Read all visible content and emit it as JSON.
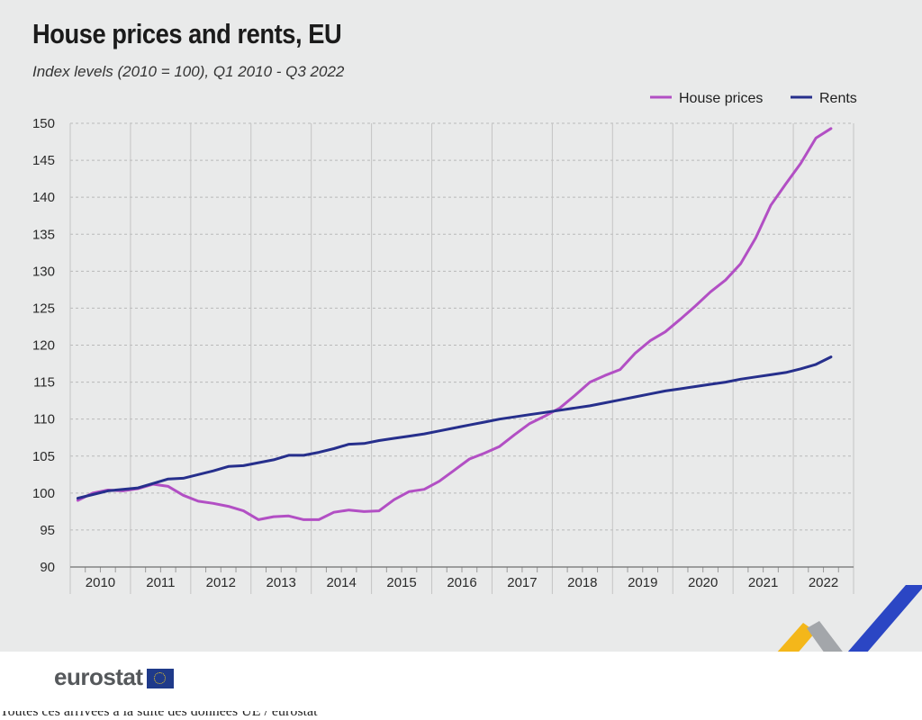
{
  "title": "House prices and rents, EU",
  "subtitle": "Index levels (2010 = 100),  Q1 2010 - Q3 2022",
  "brand": "eurostat",
  "footer_partial_text": "Toutes ces arrivées à la suite des données UE / eurostat",
  "colors": {
    "house_prices": "#b24fc4",
    "rents": "#262f8c",
    "background": "#e9eaea",
    "deco_yellow": "#f4b71a",
    "deco_blue": "#2b46c4",
    "deco_grey": "#a3a6aa"
  },
  "chart_data": {
    "type": "line",
    "title": "House prices and rents, EU",
    "subtitle": "Index levels (2010 = 100),  Q1 2010 - Q3 2022",
    "x_labels": [
      "2010",
      "2011",
      "2012",
      "2013",
      "2014",
      "2015",
      "2016",
      "2017",
      "2018",
      "2019",
      "2020",
      "2021",
      "2022"
    ],
    "x_quarters": [
      "Q1 2010",
      "Q2 2010",
      "Q3 2010",
      "Q4 2010",
      "Q1 2011",
      "Q2 2011",
      "Q3 2011",
      "Q4 2011",
      "Q1 2012",
      "Q2 2012",
      "Q3 2012",
      "Q4 2012",
      "Q1 2013",
      "Q2 2013",
      "Q3 2013",
      "Q4 2013",
      "Q1 2014",
      "Q2 2014",
      "Q3 2014",
      "Q4 2014",
      "Q1 2015",
      "Q2 2015",
      "Q3 2015",
      "Q4 2015",
      "Q1 2016",
      "Q2 2016",
      "Q3 2016",
      "Q4 2016",
      "Q1 2017",
      "Q2 2017",
      "Q3 2017",
      "Q4 2017",
      "Q1 2018",
      "Q2 2018",
      "Q3 2018",
      "Q4 2018",
      "Q1 2019",
      "Q2 2019",
      "Q3 2019",
      "Q4 2019",
      "Q1 2020",
      "Q2 2020",
      "Q3 2020",
      "Q4 2020",
      "Q1 2021",
      "Q2 2021",
      "Q3 2021",
      "Q4 2021",
      "Q1 2022",
      "Q2 2022",
      "Q3 2022"
    ],
    "ylim": [
      90,
      150
    ],
    "yticks": [
      90,
      95,
      100,
      105,
      110,
      115,
      120,
      125,
      130,
      135,
      140,
      145,
      150
    ],
    "grid": true,
    "legend_position": "top-right",
    "series": [
      {
        "name": "House prices",
        "color": "#b24fc4",
        "values": [
          99.0,
          100.0,
          100.4,
          100.3,
          100.6,
          101.2,
          100.9,
          99.7,
          98.9,
          98.6,
          98.2,
          97.6,
          96.4,
          96.8,
          96.9,
          96.4,
          96.4,
          97.4,
          97.7,
          97.5,
          97.6,
          99.1,
          100.2,
          100.5,
          101.6,
          103.1,
          104.6,
          105.4,
          106.3,
          107.9,
          109.4,
          110.4,
          111.5,
          113.2,
          115.0,
          115.9,
          116.7,
          118.9,
          120.6,
          121.8,
          123.5,
          125.3,
          127.2,
          128.8,
          131.0,
          134.5,
          138.9,
          141.8,
          144.6,
          148.0,
          149.3
        ]
      },
      {
        "name": "Rents",
        "color": "#262f8c",
        "values": [
          99.3,
          99.8,
          100.3,
          100.5,
          100.7,
          101.3,
          101.9,
          102.0,
          102.5,
          103.0,
          103.6,
          103.7,
          104.1,
          104.5,
          105.1,
          105.1,
          105.5,
          106.0,
          106.6,
          106.7,
          107.1,
          107.4,
          107.7,
          108.0,
          108.4,
          108.8,
          109.2,
          109.6,
          110.0,
          110.3,
          110.6,
          110.9,
          111.2,
          111.5,
          111.8,
          112.2,
          112.6,
          113.0,
          113.4,
          113.8,
          114.1,
          114.4,
          114.7,
          115.0,
          115.4,
          115.7,
          116.0,
          116.3,
          116.8,
          117.4,
          118.4
        ]
      }
    ]
  }
}
